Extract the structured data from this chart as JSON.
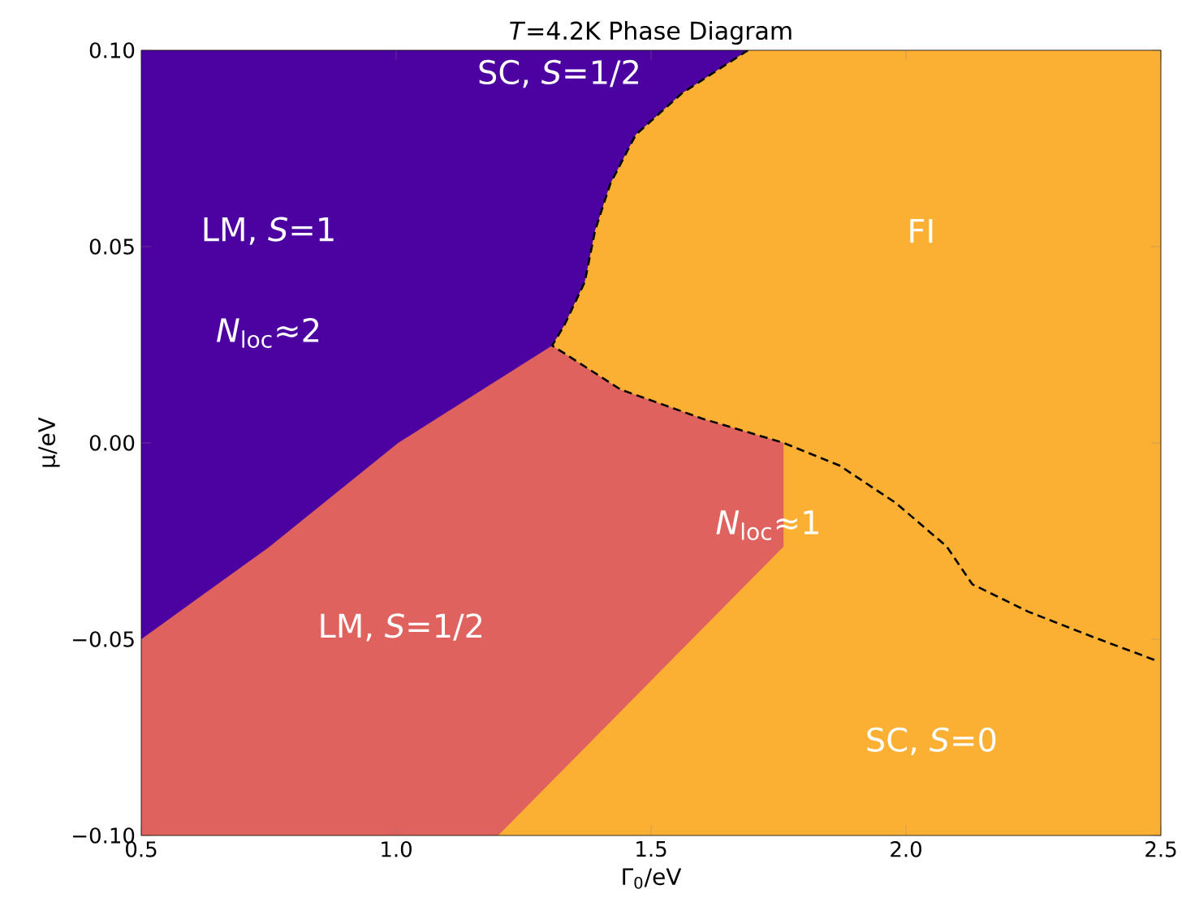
{
  "chart_data": {
    "type": "area",
    "title": "*T*=4.2K Phase Diagram",
    "xlabel": "Γ$_{0}$/eV",
    "ylabel": "μ/eV",
    "xlim": [
      0.5,
      2.5
    ],
    "ylim": [
      -0.1,
      0.1
    ],
    "xticks": [
      0.5,
      {
        "value": 1,
        "label": "1.0"
      },
      1.5,
      {
        "value": 2,
        "label": "2.0"
      },
      2.5
    ],
    "yticks": [
      {
        "value": -0.1,
        "label": "−0.10"
      },
      {
        "value": -0.05,
        "label": "−0.05"
      },
      {
        "value": 0,
        "label": "0.00"
      },
      0.05,
      {
        "value": 0.1,
        "label": "0.10"
      }
    ],
    "grid": false,
    "series": [
      {
        "type": "area",
        "color": "#fbb033",
        "x": [
          0.5,
          1.5,
          2.5
        ],
        "values": [
          -0.1,
          -0.1,
          -0.1
        ]
      },
      {
        "type": "area",
        "color": "#e0625f",
        "x": [
          0.5,
          1.2,
          1.55,
          1.76
        ],
        "values": [
          -0.1,
          -0.1,
          -0.054,
          -0.0264
        ]
      },
      {
        "type": "area",
        "color": "#4c02a1",
        "x": [
          0.5,
          0.75,
          1.004
        ],
        "values": [
          -0.05,
          -0.0266,
          0.0
        ]
      },
      {
        "type": "area",
        "color": "#4c02a1",
        "x": [
          0.5,
          1.0,
          1.5,
          1.69
        ],
        "values": [
          0.1,
          0.1,
          0.1,
          0.1
        ]
      },
      {
        "type": "area",
        "color": "#fbb033",
        "x": [
          1.306,
          1.33,
          1.37,
          1.39,
          1.42,
          1.47,
          1.56,
          1.69,
          2.1,
          2.5
        ],
        "values": [
          0.0248,
          0.03,
          0.041,
          0.054,
          0.066,
          0.0785,
          0.089,
          0.1,
          0.1,
          0.1
        ]
      },
      {
        "type": "area",
        "color": "#e0625f",
        "x": [
          1.004,
          1.306,
          1.44,
          1.6,
          1.76
        ],
        "values": [
          0.0,
          0.0248,
          0.0136,
          0.0062,
          0.0
        ]
      },
      {
        "type": "line",
        "color": "#000000",
        "line_style": "dashed",
        "x": [
          1.69,
          1.56,
          1.47,
          1.42,
          1.39,
          1.37,
          1.33,
          1.306,
          1.44,
          1.6,
          1.76,
          1.87,
          1.98,
          2.08,
          2.13,
          2.24,
          2.37,
          2.49
        ],
        "values": [
          0.1,
          0.089,
          0.0785,
          0.066,
          0.054,
          0.041,
          0.03,
          0.0248,
          0.0136,
          0.0062,
          0.0,
          -0.0058,
          -0.0153,
          -0.0264,
          -0.036,
          -0.043,
          -0.0496,
          -0.0554
        ]
      }
    ],
    "annotations": [
      "LM, *S*=1",
      "*N*$_{loc}$≈2",
      "SC, *S*=1/2",
      "FI",
      "*N*$_{loc}$≈1",
      "LM, *S*=1/2",
      "SC, *S*=0"
    ]
  }
}
